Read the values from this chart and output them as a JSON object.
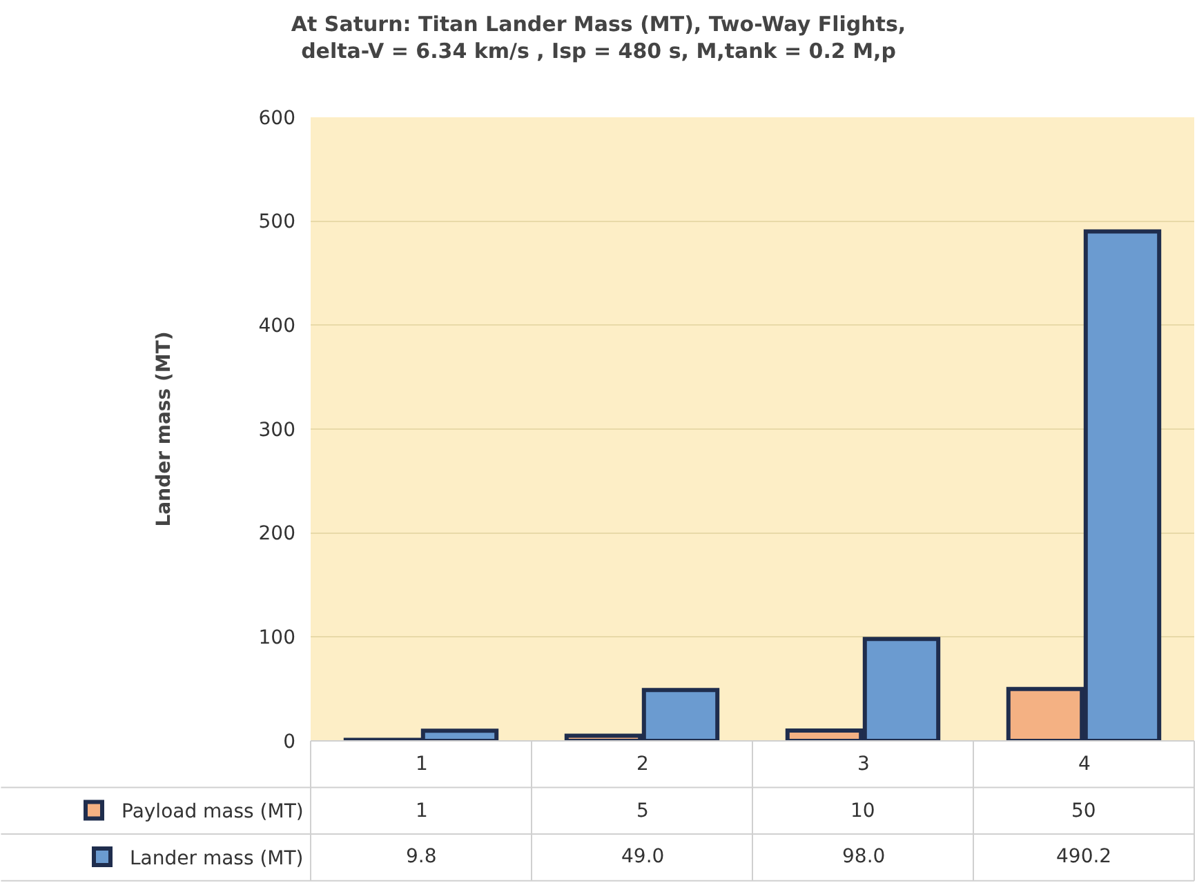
{
  "chart_data": {
    "type": "bar",
    "title": "At Saturn: Titan Lander Mass (MT), Two-Way Flights,\ndelta-V = 6.34 km/s , Isp = 480 s, M,tank = 0.2 M,p",
    "ylabel": "Lander mass (MT)",
    "categories": [
      "1",
      "2",
      "3",
      "4"
    ],
    "series": [
      {
        "name": "Payload mass (MT)",
        "color": "#f4b183",
        "values": [
          1,
          5,
          10,
          50
        ],
        "value_labels": [
          "1",
          "5",
          "10",
          "50"
        ]
      },
      {
        "name": "Lander mass (MT)",
        "color": "#6b9bd0",
        "values": [
          9.8,
          49.0,
          98.0,
          490.2
        ],
        "value_labels": [
          "9.8",
          "49.0",
          "98.0",
          "490.2"
        ]
      }
    ],
    "ylim": [
      0,
      600
    ],
    "yticks": [
      0,
      100,
      200,
      300,
      400,
      500,
      600
    ],
    "grid": "y",
    "legend": "bottom left"
  }
}
